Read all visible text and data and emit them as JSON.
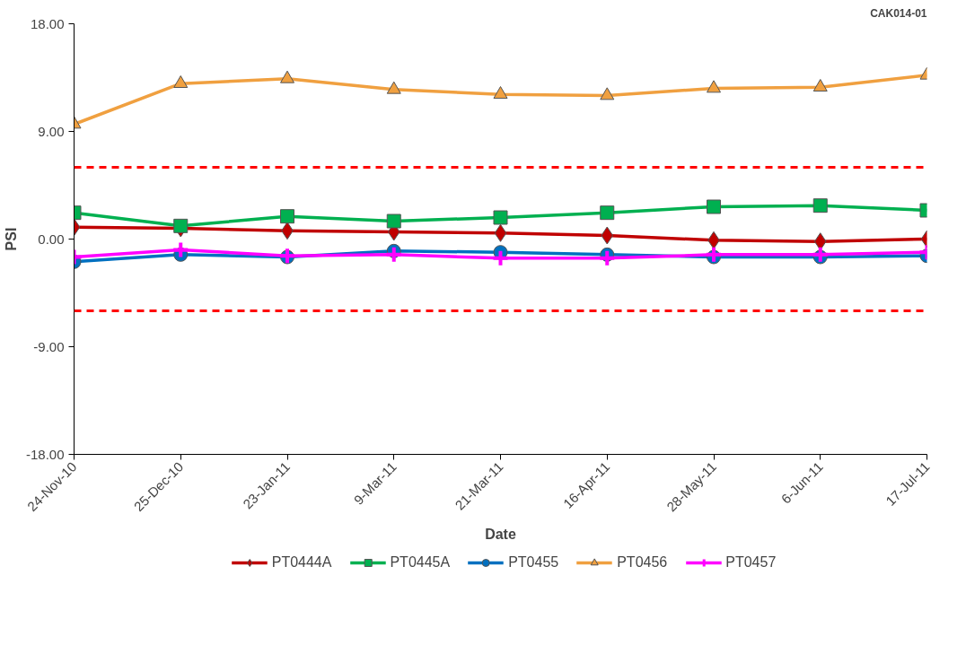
{
  "chart_data": {
    "type": "line",
    "xlabel": "Date",
    "ylabel": "PSI",
    "annotations": [
      "CAK014-01"
    ],
    "categories": [
      "24-Nov-10",
      "25-Dec-10",
      "23-Jan-11",
      "9-Mar-11",
      "21-Mar-11",
      "16-Apr-11",
      "28-May-11",
      "6-Jun-11",
      "17-Jul-11"
    ],
    "series": [
      {
        "name": "PT0444A",
        "color": "#c00000",
        "marker": "diamond",
        "values": [
          1.0,
          0.9,
          0.7,
          0.6,
          0.5,
          0.3,
          -0.1,
          -0.2,
          0.0
        ]
      },
      {
        "name": "PT0445A",
        "color": "#00b050",
        "marker": "square",
        "values": [
          2.2,
          1.1,
          1.9,
          1.5,
          1.8,
          2.2,
          2.7,
          2.8,
          2.4
        ]
      },
      {
        "name": "PT0455",
        "color": "#0070c0",
        "marker": "circle",
        "values": [
          -1.9,
          -1.3,
          -1.5,
          -1.0,
          -1.1,
          -1.3,
          -1.5,
          -1.5,
          -1.4
        ]
      },
      {
        "name": "PT0456",
        "color": "#f0a040",
        "marker": "triangle",
        "values": [
          9.6,
          13.0,
          13.4,
          12.5,
          12.1,
          12.0,
          12.6,
          12.7,
          13.7
        ]
      },
      {
        "name": "PT0457",
        "color": "#ff00ff",
        "marker": "cross",
        "values": [
          -1.5,
          -0.9,
          -1.4,
          -1.3,
          -1.6,
          -1.6,
          -1.3,
          -1.3,
          -1.1
        ]
      }
    ],
    "ylim": [
      -18,
      18
    ],
    "yticks": [
      {
        "value": -18,
        "label": "-18.00"
      },
      {
        "value": -9,
        "label": "-9.00"
      },
      {
        "value": 0,
        "label": "0.00"
      },
      {
        "value": 9,
        "label": "9.00"
      },
      {
        "value": 18,
        "label": "18.00"
      }
    ],
    "ref_lines": [
      {
        "axis": "y",
        "value": 6,
        "label": null,
        "color": "#ff0000",
        "line_style": "dashed"
      },
      {
        "axis": "y",
        "value": -6,
        "label": null,
        "color": "#ff0000",
        "line_style": "dashed"
      }
    ],
    "grid": false,
    "legend": "bottom",
    "line_style": "solid"
  }
}
